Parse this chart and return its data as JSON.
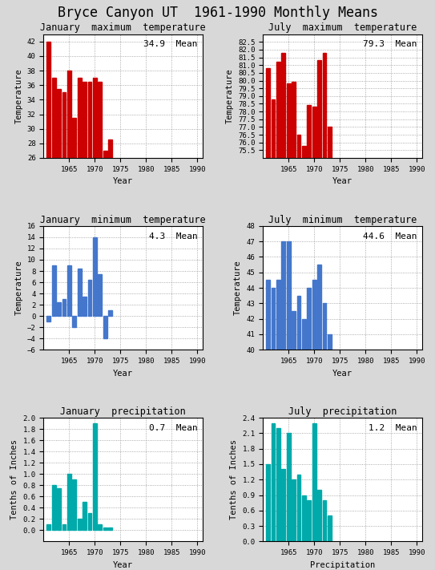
{
  "title": "Bryce Canyon UT  1961-1990 Monthly Means",
  "subplots": [
    {
      "title": "January  maximum  temperature",
      "ylabel": "Temperature",
      "xlabel": "Year",
      "mean_label": "34.9  Mean",
      "color": "#cc0000",
      "years": [
        1961,
        1962,
        1963,
        1964,
        1965,
        1966,
        1967,
        1968,
        1969,
        1970,
        1971,
        1972,
        1973
      ],
      "values": [
        42.0,
        37.0,
        35.5,
        35.0,
        38.0,
        31.5,
        37.0,
        36.5,
        36.5,
        37.0,
        36.5,
        27.0,
        28.5
      ],
      "ylim": [
        26,
        43
      ],
      "yticks": [
        26,
        28,
        30,
        32,
        34,
        36,
        38,
        40,
        42
      ],
      "xlim": [
        1960,
        1991
      ],
      "xticks": [
        1965,
        1970,
        1975,
        1980,
        1985,
        1990
      ]
    },
    {
      "title": "July  maximum  temperature",
      "ylabel": "Temperature",
      "xlabel": "Year",
      "mean_label": "79.3  Mean",
      "color": "#cc0000",
      "years": [
        1961,
        1962,
        1963,
        1964,
        1965,
        1966,
        1967,
        1968,
        1969,
        1970,
        1971,
        1972,
        1973
      ],
      "values": [
        80.8,
        78.8,
        81.2,
        81.8,
        79.8,
        79.9,
        76.5,
        75.8,
        78.4,
        78.3,
        81.3,
        81.8,
        77.0
      ],
      "ylim": [
        75,
        83
      ],
      "yticks": [
        75.5,
        76,
        76.5,
        77,
        77.5,
        78,
        78.5,
        79,
        79.5,
        80,
        80.5,
        81,
        81.5,
        82,
        82.5
      ],
      "xlim": [
        1960,
        1991
      ],
      "xticks": [
        1965,
        1970,
        1975,
        1980,
        1985,
        1990
      ]
    },
    {
      "title": "January  minimum  temperature",
      "ylabel": "Temperature",
      "xlabel": "Year",
      "mean_label": "4.3  Mean",
      "color": "#4477cc",
      "years": [
        1961,
        1962,
        1963,
        1964,
        1965,
        1966,
        1967,
        1968,
        1969,
        1970,
        1971,
        1972,
        1973
      ],
      "values": [
        -1.0,
        9.0,
        2.5,
        3.0,
        9.0,
        -2.0,
        8.5,
        3.5,
        6.5,
        14.0,
        7.5,
        -4.0,
        1.0
      ],
      "ylim": [
        -6,
        16
      ],
      "yticks": [
        -6,
        -4,
        -2,
        0,
        2,
        4,
        6,
        8,
        10,
        12,
        14,
        16
      ],
      "xlim": [
        1960,
        1991
      ],
      "xticks": [
        1965,
        1970,
        1975,
        1980,
        1985,
        1990
      ]
    },
    {
      "title": "July  minimum  temperature",
      "ylabel": "Temperature",
      "xlabel": "Year",
      "mean_label": "44.6  Mean",
      "color": "#4477cc",
      "years": [
        1961,
        1962,
        1963,
        1964,
        1965,
        1966,
        1967,
        1968,
        1969,
        1970,
        1971,
        1972,
        1973
      ],
      "values": [
        44.5,
        44.0,
        44.5,
        47.0,
        47.0,
        42.5,
        43.5,
        42.0,
        44.0,
        44.5,
        45.5,
        43.0,
        41.0
      ],
      "ylim": [
        40,
        48
      ],
      "yticks": [
        40,
        41,
        42,
        43,
        44,
        45,
        46,
        47,
        48
      ],
      "xlim": [
        1960,
        1991
      ],
      "xticks": [
        1965,
        1970,
        1975,
        1980,
        1985,
        1990
      ]
    },
    {
      "title": "January  precipitation",
      "ylabel": "Tenths of Inches",
      "xlabel": "Year",
      "mean_label": "0.7  Mean",
      "color": "#00aaaa",
      "years": [
        1961,
        1962,
        1963,
        1964,
        1965,
        1966,
        1967,
        1968,
        1969,
        1970,
        1971,
        1972,
        1973
      ],
      "values": [
        0.1,
        0.8,
        0.75,
        0.1,
        1.0,
        0.9,
        0.2,
        0.5,
        0.3,
        1.9,
        0.1,
        0.05,
        0.05
      ],
      "ylim": [
        -0.2,
        2.0
      ],
      "yticks": [
        0.0,
        0.2,
        0.4,
        0.6,
        0.8,
        1.0,
        1.2,
        1.4,
        1.6,
        1.8,
        2.0
      ],
      "xlim": [
        1960,
        1991
      ],
      "xticks": [
        1965,
        1970,
        1975,
        1980,
        1985,
        1990
      ]
    },
    {
      "title": "July  precipitation",
      "ylabel": "Tenths of Inches",
      "xlabel": "Precipitation",
      "mean_label": "1.2  Mean",
      "color": "#00aaaa",
      "years": [
        1961,
        1962,
        1963,
        1964,
        1965,
        1966,
        1967,
        1968,
        1969,
        1970,
        1971,
        1972,
        1973
      ],
      "values": [
        1.5,
        2.3,
        2.2,
        1.4,
        2.1,
        1.2,
        1.3,
        0.9,
        0.8,
        2.3,
        1.0,
        0.8,
        0.5
      ],
      "ylim": [
        0.0,
        2.4
      ],
      "yticks": [
        0.0,
        0.3,
        0.6,
        0.9,
        1.2,
        1.5,
        1.8,
        2.1,
        2.4
      ],
      "xlim": [
        1960,
        1991
      ],
      "xticks": [
        1965,
        1970,
        1975,
        1980,
        1985,
        1990
      ]
    }
  ],
  "bg_color": "#d8d8d8",
  "plot_bg_color": "#ffffff",
  "title_fontsize": 12,
  "subtitle_fontsize": 8.5,
  "label_fontsize": 7.5,
  "tick_fontsize": 6.5,
  "annotation_fontsize": 8
}
